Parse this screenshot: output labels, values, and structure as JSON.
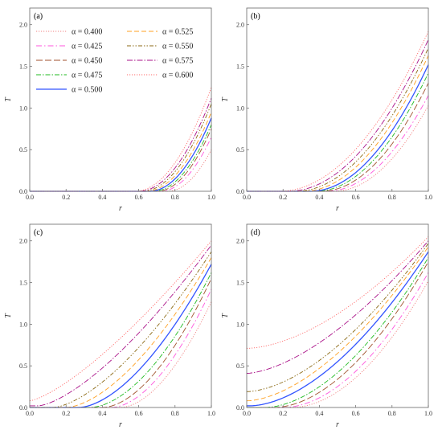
{
  "chart_data": {
    "type": "line",
    "alpha_symbol": "α",
    "legend": {
      "placement": "top-left of panel (a), two columns",
      "entries": [
        {
          "label": "α = 0.400",
          "color": "#f08080",
          "dash": "1.2,1.8"
        },
        {
          "label": "α = 0.425",
          "color": "#ff55dd",
          "dash": "7,3,1.5,3"
        },
        {
          "label": "α = 0.450",
          "color": "#a0522d",
          "dash": "8,3"
        },
        {
          "label": "α = 0.475",
          "color": "#22bb22",
          "dash": "6,2,1.5,2"
        },
        {
          "label": "α = 0.500",
          "color": "#3355ff",
          "dash": ""
        },
        {
          "label": "α = 0.525",
          "color": "#ffa020",
          "dash": "6,3"
        },
        {
          "label": "α = 0.550",
          "color": "#8b6914",
          "dash": "5,2,1.5,2,1.5,2"
        },
        {
          "label": "α = 0.575",
          "color": "#aa1188",
          "dash": "7,2,1.5,2"
        },
        {
          "label": "α = 0.600",
          "color": "#ff6a6a",
          "dash": "1.2,1.8"
        }
      ]
    },
    "axes": {
      "xlabel": "r",
      "ylabel": "T",
      "xlim": [
        0,
        1
      ],
      "ylim": [
        0,
        2.2
      ],
      "xticks": [
        "0.0",
        "0.2",
        "0.4",
        "0.6",
        "0.8",
        "1.0"
      ],
      "yticks": [
        "0.0",
        "0.5",
        "1.0",
        "1.5",
        "2.0"
      ],
      "grid": false
    },
    "panels": [
      {
        "label": "(a)",
        "params": {
          "t0": [
            0.76,
            0.72,
            0.7,
            0.68,
            0.66,
            0.64,
            0.62,
            0.6,
            0.58
          ],
          "p": [
            2,
            2,
            2,
            2,
            2,
            2,
            2,
            2,
            2
          ],
          "y0": [
            0,
            0,
            0,
            0,
            0,
            0,
            0,
            0,
            0
          ],
          "y1": [
            0.5,
            0.65,
            0.75,
            0.8,
            0.88,
            0.95,
            1.05,
            1.12,
            1.25
          ]
        }
      },
      {
        "label": "(b)",
        "params": {
          "t0": [
            0.48,
            0.44,
            0.41,
            0.38,
            0.35,
            0.31,
            0.27,
            0.23,
            0.18
          ],
          "p": [
            2,
            2,
            2,
            2,
            2,
            2,
            2,
            2,
            2
          ],
          "y0": [
            0,
            0,
            0,
            0,
            0,
            0,
            0,
            0,
            0
          ],
          "y1": [
            1.03,
            1.15,
            1.3,
            1.42,
            1.52,
            1.63,
            1.72,
            1.82,
            1.92
          ]
        }
      },
      {
        "label": "(c)",
        "params": {
          "t0": [
            0.5,
            0.45,
            0.4,
            0.33,
            0.27,
            0.2,
            0.13,
            0.05,
            0.0
          ],
          "p": [
            1.8,
            1.8,
            1.8,
            1.8,
            1.7,
            1.65,
            1.55,
            1.45,
            1.35
          ],
          "y0": [
            0,
            0,
            0,
            0,
            0,
            0,
            0,
            0.02,
            0.08
          ],
          "y1": [
            1.27,
            1.42,
            1.55,
            1.62,
            1.72,
            1.8,
            1.87,
            1.95,
            2.0
          ]
        }
      },
      {
        "label": "(d)",
        "params": {
          "t0": [
            0.25,
            0.2,
            0.15,
            0.1,
            0.02,
            0.0,
            0.0,
            0.0,
            0.0
          ],
          "p": [
            1.9,
            1.9,
            1.85,
            1.8,
            1.75,
            1.7,
            1.7,
            1.6,
            1.7
          ],
          "y0": [
            0,
            0,
            0,
            0,
            0.02,
            0.08,
            0.19,
            0.41,
            0.71
          ],
          "y1": [
            1.52,
            1.62,
            1.75,
            1.8,
            1.87,
            1.93,
            1.97,
            2.0,
            2.05
          ]
        }
      }
    ]
  }
}
